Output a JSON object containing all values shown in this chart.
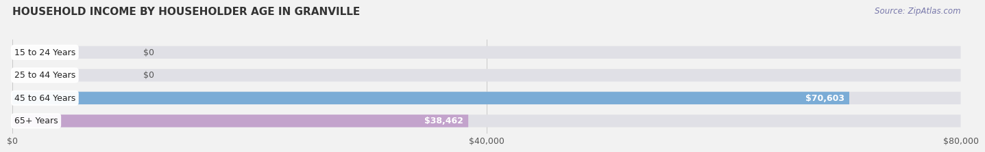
{
  "title": "HOUSEHOLD INCOME BY HOUSEHOLDER AGE IN GRANVILLE",
  "source": "Source: ZipAtlas.com",
  "categories": [
    "15 to 24 Years",
    "25 to 44 Years",
    "45 to 64 Years",
    "65+ Years"
  ],
  "values": [
    0,
    0,
    70603,
    38462
  ],
  "bar_colors": [
    "#f5c59e",
    "#f0a3aa",
    "#7bacd6",
    "#c3a3cc"
  ],
  "bar_labels": [
    "$0",
    "$0",
    "$70,603",
    "$38,462"
  ],
  "xlim": [
    0,
    80000
  ],
  "xticks": [
    0,
    40000,
    80000
  ],
  "xticklabels": [
    "$0",
    "$40,000",
    "$80,000"
  ],
  "background_color": "#f2f2f2",
  "bar_bg_color": "#e0e0e6",
  "title_fontsize": 11,
  "source_fontsize": 8.5,
  "label_fontsize": 9,
  "tick_fontsize": 9
}
